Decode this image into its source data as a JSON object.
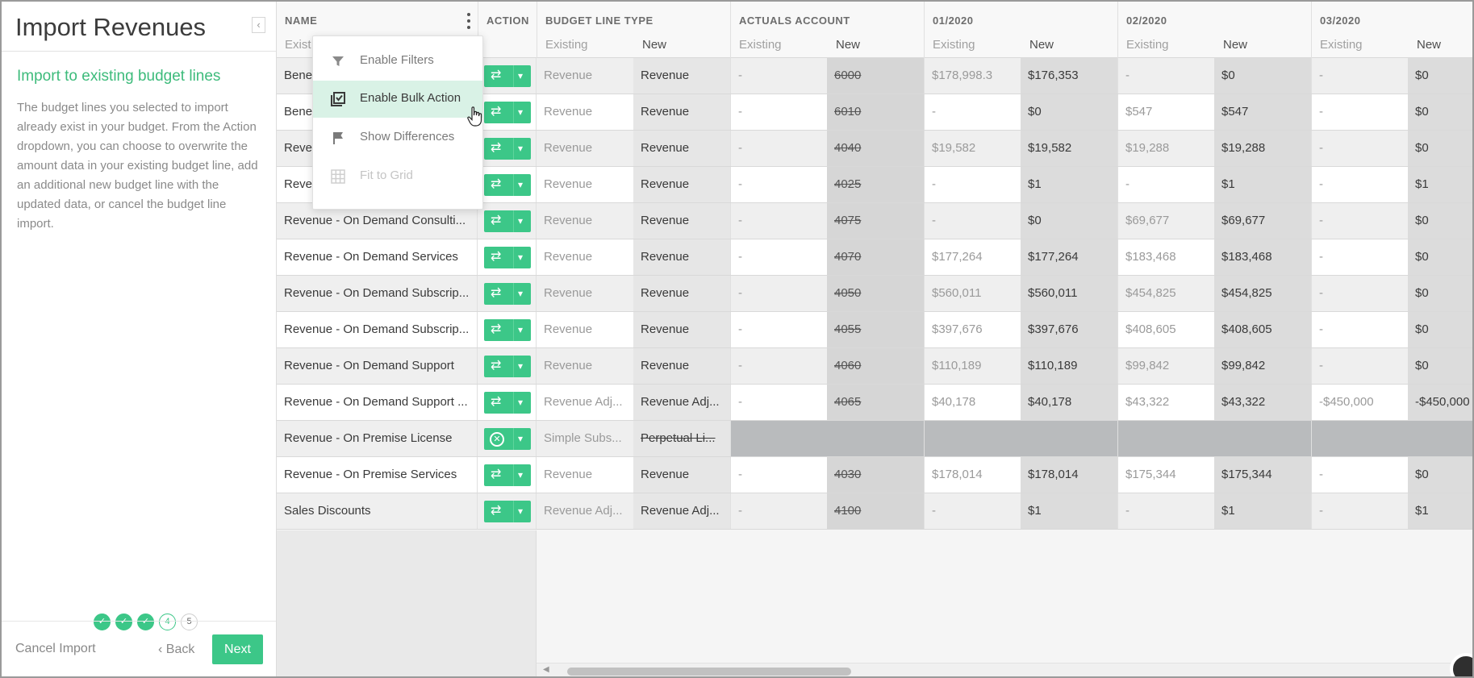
{
  "panel": {
    "title": "Import Revenues",
    "collapse_icon": "chevron-left-icon",
    "heading": "Import to existing budget lines",
    "description": "The budget lines you selected to import already exist in your budget. From the Action dropdown, you can choose to overwrite the amount data in your existing budget line, add an additional new budget line with the updated data, or cancel the budget line import.",
    "steps": [
      {
        "label": "",
        "state": "done"
      },
      {
        "label": "",
        "state": "done"
      },
      {
        "label": "",
        "state": "done"
      },
      {
        "label": "4",
        "state": "current"
      },
      {
        "label": "5",
        "state": "todo"
      }
    ],
    "cancel_label": "Cancel Import",
    "back_label": "Back",
    "next_label": "Next",
    "accent_color": "#3cc788"
  },
  "grid": {
    "columns": {
      "name": "NAME",
      "name_sub": "Exist",
      "action": "ACTION",
      "budget_line_type": "BUDGET LINE TYPE",
      "actuals_account": "ACTUALS ACCOUNT",
      "m1": "01/2020",
      "m2": "02/2020",
      "m3": "03/2020",
      "existing": "Existing",
      "new": "New"
    },
    "rows": [
      {
        "name": "Bene",
        "action": "overwrite",
        "type_existing": "Revenue",
        "type_new": "Revenue",
        "acct_existing": "-",
        "acct_new": "6000",
        "m1_existing": "$178,998.3",
        "m1_new": "$176,353",
        "m2_existing": "-",
        "m2_new": "$0",
        "m3_existing": "-",
        "m3_new": "$0"
      },
      {
        "name": "Bene",
        "action": "overwrite",
        "type_existing": "Revenue",
        "type_new": "Revenue",
        "acct_existing": "-",
        "acct_new": "6010",
        "m1_existing": "-",
        "m1_new": "$0",
        "m2_existing": "$547",
        "m2_new": "$547",
        "m3_existing": "-",
        "m3_new": "$0"
      },
      {
        "name": "Reve",
        "action": "overwrite",
        "type_existing": "Revenue",
        "type_new": "Revenue",
        "acct_existing": "-",
        "acct_new": "4040",
        "m1_existing": "$19,582",
        "m1_new": "$19,582",
        "m2_existing": "$19,288",
        "m2_new": "$19,288",
        "m3_existing": "-",
        "m3_new": "$0"
      },
      {
        "name": "Reve",
        "action": "overwrite",
        "type_existing": "Revenue",
        "type_new": "Revenue",
        "acct_existing": "-",
        "acct_new": "4025",
        "m1_existing": "-",
        "m1_new": "$1",
        "m2_existing": "-",
        "m2_new": "$1",
        "m3_existing": "-",
        "m3_new": "$1"
      },
      {
        "name": "Revenue - On Demand Consulti...",
        "action": "overwrite",
        "type_existing": "Revenue",
        "type_new": "Revenue",
        "acct_existing": "-",
        "acct_new": "4075",
        "m1_existing": "-",
        "m1_new": "$0",
        "m2_existing": "$69,677",
        "m2_new": "$69,677",
        "m3_existing": "-",
        "m3_new": "$0"
      },
      {
        "name": "Revenue - On Demand Services",
        "action": "overwrite",
        "type_existing": "Revenue",
        "type_new": "Revenue",
        "acct_existing": "-",
        "acct_new": "4070",
        "m1_existing": "$177,264",
        "m1_new": "$177,264",
        "m2_existing": "$183,468",
        "m2_new": "$183,468",
        "m3_existing": "-",
        "m3_new": "$0"
      },
      {
        "name": "Revenue - On Demand Subscrip...",
        "action": "overwrite",
        "type_existing": "Revenue",
        "type_new": "Revenue",
        "acct_existing": "-",
        "acct_new": "4050",
        "m1_existing": "$560,011",
        "m1_new": "$560,011",
        "m2_existing": "$454,825",
        "m2_new": "$454,825",
        "m3_existing": "-",
        "m3_new": "$0"
      },
      {
        "name": "Revenue - On Demand Subscrip...",
        "action": "overwrite",
        "type_existing": "Revenue",
        "type_new": "Revenue",
        "acct_existing": "-",
        "acct_new": "4055",
        "m1_existing": "$397,676",
        "m1_new": "$397,676",
        "m2_existing": "$408,605",
        "m2_new": "$408,605",
        "m3_existing": "-",
        "m3_new": "$0"
      },
      {
        "name": "Revenue - On Demand Support",
        "action": "overwrite",
        "type_existing": "Revenue",
        "type_new": "Revenue",
        "acct_existing": "-",
        "acct_new": "4060",
        "m1_existing": "$110,189",
        "m1_new": "$110,189",
        "m2_existing": "$99,842",
        "m2_new": "$99,842",
        "m3_existing": "-",
        "m3_new": "$0"
      },
      {
        "name": "Revenue - On Demand Support ...",
        "action": "overwrite",
        "type_existing": "Revenue Adj...",
        "type_new": "Revenue Adj...",
        "acct_existing": "-",
        "acct_new": "4065",
        "m1_existing": "$40,178",
        "m1_new": "$40,178",
        "m2_existing": "$43,322",
        "m2_new": "$43,322",
        "m3_existing": "-$450,000",
        "m3_new": "-$450,000"
      },
      {
        "name": "Revenue - On Premise License",
        "action": "cancel",
        "type_existing": "Simple Subs...",
        "type_new": "Perpetual Li...",
        "acct_existing": "",
        "acct_new": "",
        "m1_existing": "",
        "m1_new": "",
        "m2_existing": "",
        "m2_new": "",
        "m3_existing": "",
        "m3_new": ""
      },
      {
        "name": "Revenue - On Premise Services",
        "action": "overwrite",
        "type_existing": "Revenue",
        "type_new": "Revenue",
        "acct_existing": "-",
        "acct_new": "4030",
        "m1_existing": "$178,014",
        "m1_new": "$178,014",
        "m2_existing": "$175,344",
        "m2_new": "$175,344",
        "m3_existing": "-",
        "m3_new": "$0"
      },
      {
        "name": "Sales Discounts",
        "action": "overwrite",
        "type_existing": "Revenue Adj...",
        "type_new": "Revenue Adj...",
        "acct_existing": "-",
        "acct_new": "4100",
        "m1_existing": "-",
        "m1_new": "$1",
        "m2_existing": "-",
        "m2_new": "$1",
        "m3_existing": "-",
        "m3_new": "$1"
      }
    ]
  },
  "menu": {
    "items": [
      {
        "label": "Enable Filters",
        "icon": "filter-icon",
        "state": "normal"
      },
      {
        "label": "Enable Bulk Action",
        "icon": "checklist-icon",
        "state": "active"
      },
      {
        "label": "Show Differences",
        "icon": "flag-icon",
        "state": "normal"
      },
      {
        "label": "Fit to Grid",
        "icon": "grid-icon",
        "state": "disabled"
      }
    ]
  }
}
